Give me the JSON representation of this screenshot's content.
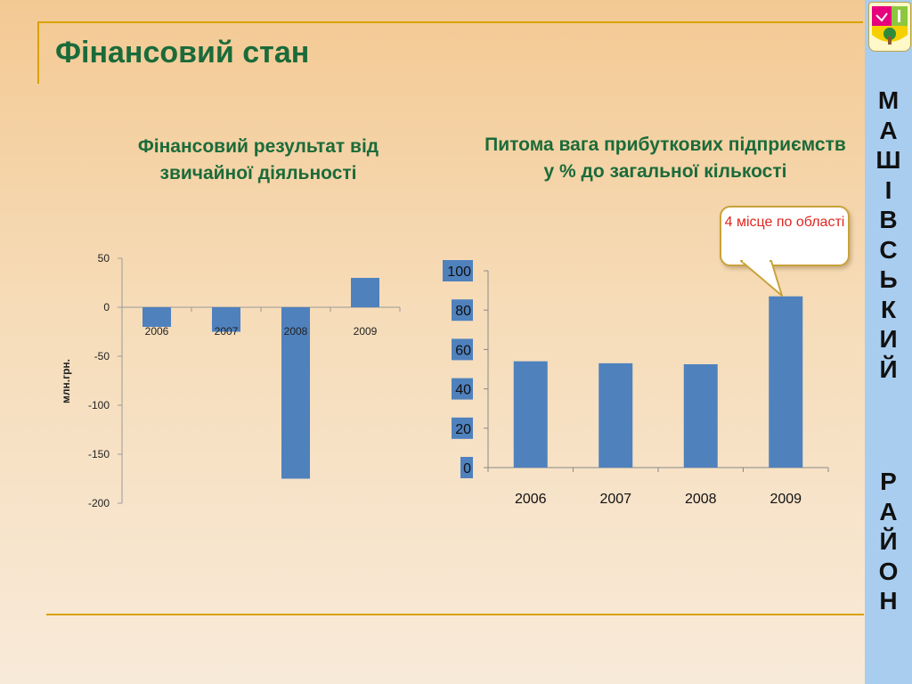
{
  "page": {
    "title": "Фінансовий стан",
    "sidebar_title_line1": "МАШІВСЬКИЙ",
    "sidebar_title_line2": "РАЙОН",
    "emblem_icon": "district-coat-of-arms-icon"
  },
  "colors": {
    "title_green": "#1b6b3a",
    "bar_blue": "#4f81bd",
    "accent_gold": "#d9a100",
    "sidebar_blue": "#a9cdef",
    "callout_red": "#e0261f"
  },
  "callout": {
    "text": "4 місце по області"
  },
  "chart_data": [
    {
      "type": "bar",
      "title": "Фінансовий результат від звичайної діяльності",
      "ylabel": "млн.грн.",
      "xlabel": "",
      "categories": [
        "2006",
        "2007",
        "2008",
        "2009"
      ],
      "values": [
        -20,
        -25,
        -175,
        30
      ],
      "ylim": [
        -200,
        50
      ],
      "yticks": [
        50,
        0,
        -50,
        -100,
        -150,
        -200
      ],
      "grid": false
    },
    {
      "type": "bar",
      "title": "Питома вага прибуткових підприємств у % до загальної кількості",
      "xlabel": "",
      "ylabel": "",
      "categories": [
        "2006",
        "2007",
        "2008",
        "2009"
      ],
      "values": [
        54,
        53,
        52.5,
        87
      ],
      "ylim": [
        0,
        100
      ],
      "yticks": [
        100,
        80,
        60,
        40,
        20,
        0
      ],
      "grid": false
    }
  ]
}
